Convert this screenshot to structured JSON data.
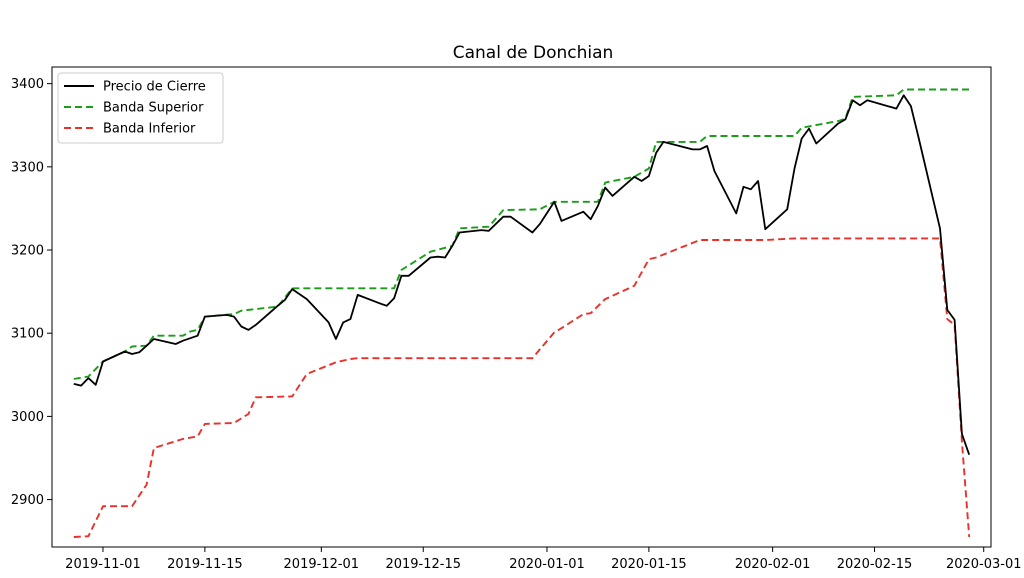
{
  "chart_data": {
    "type": "line",
    "title": "Canal de Donchian",
    "xlabel": "",
    "ylabel": "",
    "xlim": [
      "2019-10-25",
      "2020-03-02"
    ],
    "ylim": [
      2843,
      3420
    ],
    "x_tick_labels": [
      "2019-11-01",
      "2019-11-15",
      "2019-12-01",
      "2019-12-15",
      "2020-01-01",
      "2020-01-15",
      "2020-02-01",
      "2020-02-15",
      "2020-03-01"
    ],
    "x_tick_values": [
      "2019-11-01",
      "2019-11-15",
      "2019-12-01",
      "2019-12-15",
      "2020-01-01",
      "2020-01-15",
      "2020-02-01",
      "2020-02-15",
      "2020-03-01"
    ],
    "y_tick_labels": [
      "2900",
      "3000",
      "3100",
      "3200",
      "3300",
      "3400"
    ],
    "y_tick_values": [
      2900,
      3000,
      3100,
      3200,
      3300,
      3400
    ],
    "legend_position": "top-left",
    "series": [
      {
        "name": "Precio de Cierre",
        "color": "#000000",
        "style": "solid",
        "points": [
          [
            "2019-10-28",
            3039
          ],
          [
            "2019-10-29",
            3037
          ],
          [
            "2019-10-30",
            3046
          ],
          [
            "2019-10-31",
            3038
          ],
          [
            "2019-11-01",
            3066
          ],
          [
            "2019-11-04",
            3078
          ],
          [
            "2019-11-05",
            3075
          ],
          [
            "2019-11-06",
            3077
          ],
          [
            "2019-11-07",
            3085
          ],
          [
            "2019-11-08",
            3093
          ],
          [
            "2019-11-11",
            3087
          ],
          [
            "2019-11-12",
            3091
          ],
          [
            "2019-11-13",
            3094
          ],
          [
            "2019-11-14",
            3097
          ],
          [
            "2019-11-15",
            3120
          ],
          [
            "2019-11-18",
            3122
          ],
          [
            "2019-11-19",
            3120
          ],
          [
            "2019-11-20",
            3108
          ],
          [
            "2019-11-21",
            3104
          ],
          [
            "2019-11-22",
            3110
          ],
          [
            "2019-11-25",
            3133
          ],
          [
            "2019-11-26",
            3140
          ],
          [
            "2019-11-27",
            3153
          ],
          [
            "2019-11-29",
            3141
          ],
          [
            "2019-12-02",
            3113
          ],
          [
            "2019-12-03",
            3093
          ],
          [
            "2019-12-04",
            3113
          ],
          [
            "2019-12-05",
            3117
          ],
          [
            "2019-12-06",
            3146
          ],
          [
            "2019-12-09",
            3136
          ],
          [
            "2019-12-10",
            3133
          ],
          [
            "2019-12-11",
            3142
          ],
          [
            "2019-12-12",
            3169
          ],
          [
            "2019-12-13",
            3169
          ],
          [
            "2019-12-16",
            3191
          ],
          [
            "2019-12-17",
            3192
          ],
          [
            "2019-12-18",
            3191
          ],
          [
            "2019-12-19",
            3205
          ],
          [
            "2019-12-20",
            3221
          ],
          [
            "2019-12-23",
            3224
          ],
          [
            "2019-12-24",
            3223
          ],
          [
            "2019-12-26",
            3240
          ],
          [
            "2019-12-27",
            3240
          ],
          [
            "2019-12-30",
            3221
          ],
          [
            "2019-12-31",
            3231
          ],
          [
            "2020-01-02",
            3258
          ],
          [
            "2020-01-03",
            3235
          ],
          [
            "2020-01-06",
            3246
          ],
          [
            "2020-01-07",
            3237
          ],
          [
            "2020-01-08",
            3253
          ],
          [
            "2020-01-09",
            3275
          ],
          [
            "2020-01-10",
            3265
          ],
          [
            "2020-01-13",
            3288
          ],
          [
            "2020-01-14",
            3283
          ],
          [
            "2020-01-15",
            3289
          ],
          [
            "2020-01-16",
            3317
          ],
          [
            "2020-01-17",
            3330
          ],
          [
            "2020-01-21",
            3321
          ],
          [
            "2020-01-22",
            3321
          ],
          [
            "2020-01-23",
            3325
          ],
          [
            "2020-01-24",
            3295
          ],
          [
            "2020-01-27",
            3244
          ],
          [
            "2020-01-28",
            3276
          ],
          [
            "2020-01-29",
            3273
          ],
          [
            "2020-01-30",
            3283
          ],
          [
            "2020-01-31",
            3225
          ],
          [
            "2020-02-03",
            3249
          ],
          [
            "2020-02-04",
            3298
          ],
          [
            "2020-02-05",
            3334
          ],
          [
            "2020-02-06",
            3346
          ],
          [
            "2020-02-07",
            3328
          ],
          [
            "2020-02-10",
            3352
          ],
          [
            "2020-02-11",
            3357
          ],
          [
            "2020-02-12",
            3380
          ],
          [
            "2020-02-13",
            3374
          ],
          [
            "2020-02-14",
            3380
          ],
          [
            "2020-02-18",
            3370
          ],
          [
            "2020-02-19",
            3386
          ],
          [
            "2020-02-20",
            3373
          ],
          [
            "2020-02-21",
            3337
          ],
          [
            "2020-02-24",
            3226
          ],
          [
            "2020-02-25",
            3128
          ],
          [
            "2020-02-26",
            3116
          ],
          [
            "2020-02-27",
            2979
          ],
          [
            "2020-02-28",
            2954
          ]
        ]
      },
      {
        "name": "Banda Superior",
        "color": "#1a9e1a",
        "style": "dashed",
        "points": [
          [
            "2019-10-28",
            3045
          ],
          [
            "2019-10-30",
            3048
          ],
          [
            "2019-11-01",
            3066
          ],
          [
            "2019-11-04",
            3078
          ],
          [
            "2019-11-05",
            3084
          ],
          [
            "2019-11-07",
            3085
          ],
          [
            "2019-11-08",
            3097
          ],
          [
            "2019-11-12",
            3097
          ],
          [
            "2019-11-13",
            3102
          ],
          [
            "2019-11-14",
            3104
          ],
          [
            "2019-11-15",
            3120
          ],
          [
            "2019-11-19",
            3123
          ],
          [
            "2019-11-20",
            3127
          ],
          [
            "2019-11-25",
            3132
          ],
          [
            "2019-11-27",
            3154
          ],
          [
            "2019-12-11",
            3154
          ],
          [
            "2019-12-12",
            3176
          ],
          [
            "2019-12-16",
            3198
          ],
          [
            "2019-12-19",
            3205
          ],
          [
            "2019-12-20",
            3226
          ],
          [
            "2019-12-24",
            3228
          ],
          [
            "2019-12-26",
            3248
          ],
          [
            "2019-12-31",
            3249
          ],
          [
            "2020-01-02",
            3258
          ],
          [
            "2020-01-08",
            3258
          ],
          [
            "2020-01-09",
            3281
          ],
          [
            "2020-01-13",
            3288
          ],
          [
            "2020-01-15",
            3298
          ],
          [
            "2020-01-16",
            3330
          ],
          [
            "2020-01-22",
            3330
          ],
          [
            "2020-01-23",
            3337
          ],
          [
            "2020-02-04",
            3337
          ],
          [
            "2020-02-05",
            3347
          ],
          [
            "2020-02-10",
            3355
          ],
          [
            "2020-02-11",
            3358
          ],
          [
            "2020-02-12",
            3384
          ],
          [
            "2020-02-18",
            3386
          ],
          [
            "2020-02-19",
            3393
          ],
          [
            "2020-02-28",
            3393
          ]
        ]
      },
      {
        "name": "Banda Inferior",
        "color": "#e8312a",
        "style": "dashed",
        "points": [
          [
            "2019-10-28",
            2855
          ],
          [
            "2019-10-30",
            2856
          ],
          [
            "2019-11-01",
            2892
          ],
          [
            "2019-11-05",
            2892
          ],
          [
            "2019-11-07",
            2918
          ],
          [
            "2019-11-08",
            2962
          ],
          [
            "2019-11-12",
            2973
          ],
          [
            "2019-11-14",
            2976
          ],
          [
            "2019-11-15",
            2991
          ],
          [
            "2019-11-19",
            2992
          ],
          [
            "2019-11-21",
            3003
          ],
          [
            "2019-11-22",
            3023
          ],
          [
            "2019-11-27",
            3024
          ],
          [
            "2019-11-29",
            3051
          ],
          [
            "2019-12-03",
            3065
          ],
          [
            "2019-12-05",
            3069
          ],
          [
            "2019-12-06",
            3070
          ],
          [
            "2019-12-30",
            3070
          ],
          [
            "2020-01-02",
            3101
          ],
          [
            "2020-01-03",
            3106
          ],
          [
            "2020-01-06",
            3123
          ],
          [
            "2020-01-07",
            3124
          ],
          [
            "2020-01-09",
            3141
          ],
          [
            "2020-01-13",
            3157
          ],
          [
            "2020-01-15",
            3189
          ],
          [
            "2020-01-16",
            3191
          ],
          [
            "2020-01-22",
            3212
          ],
          [
            "2020-01-31",
            3212
          ],
          [
            "2020-02-04",
            3214
          ],
          [
            "2020-02-24",
            3214
          ],
          [
            "2020-02-25",
            3117
          ],
          [
            "2020-02-26",
            3110
          ],
          [
            "2020-02-27",
            2970
          ],
          [
            "2020-02-28",
            2855
          ]
        ]
      }
    ]
  }
}
